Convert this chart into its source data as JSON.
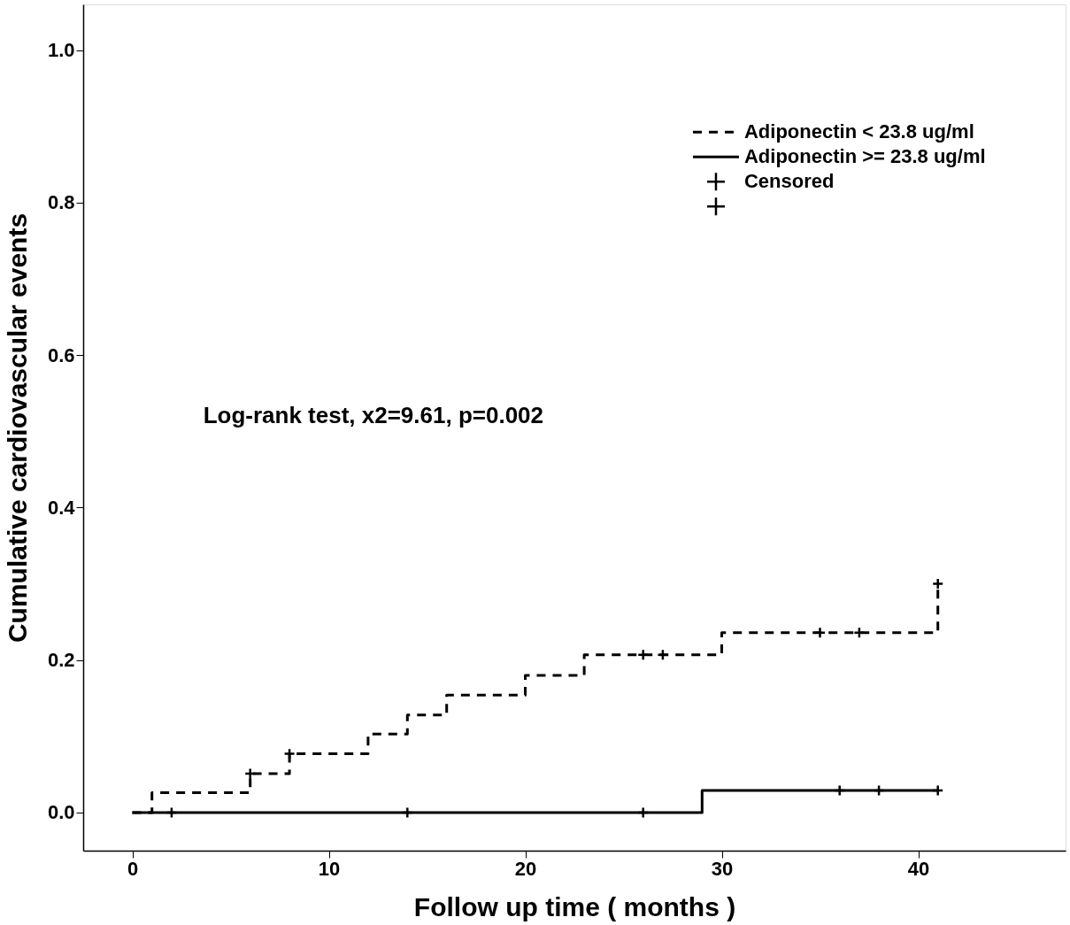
{
  "chart_data": {
    "type": "step",
    "xlabel": "Follow up time ( months )",
    "ylabel": "Cumulative cardiovascular events",
    "annotations": [
      "Log-rank test, x2=9.61, p=0.002"
    ],
    "xlim": [
      -2.5,
      47.5
    ],
    "ylim": [
      -0.05,
      1.06
    ],
    "xticks": [
      0,
      10,
      20,
      30,
      40
    ],
    "yticks": [
      {
        "value": 0,
        "label": "0.0"
      },
      0.2,
      0.4,
      0.6,
      0.8,
      {
        "value": 1,
        "label": "1.0"
      }
    ],
    "grid": false,
    "legend": "top right",
    "series": [
      {
        "name": "Adiponectin < 23.8 ug/ml",
        "color": "#000000",
        "line_style": "dashed",
        "x": [
          0,
          1,
          6,
          8,
          12,
          14,
          16,
          20,
          23,
          30,
          41
        ],
        "values": [
          0,
          0.026,
          0.051,
          0.077,
          0.103,
          0.128,
          0.154,
          0.18,
          0.207,
          0.236,
          0.3
        ]
      },
      {
        "name": "Adiponectin >= 23.8 ug/ml",
        "color": "#000000",
        "line_style": "solid",
        "x": [
          0,
          29,
          41
        ],
        "values": [
          0,
          0.029,
          0.029
        ]
      },
      {
        "name": "Censored",
        "type": "scatter",
        "marker": "cross",
        "color": "#000000",
        "x": [
          6,
          8,
          26,
          27,
          35,
          37,
          41
        ],
        "values": [
          0.051,
          0.077,
          0.207,
          0.207,
          0.236,
          0.236,
          0.3
        ]
      },
      {
        "type": "scatter",
        "marker": "cross",
        "color": "#000000",
        "x": [
          2,
          14,
          26,
          36,
          38,
          41
        ],
        "values": [
          0,
          0,
          0,
          0.029,
          0.029,
          0.029
        ]
      }
    ]
  }
}
